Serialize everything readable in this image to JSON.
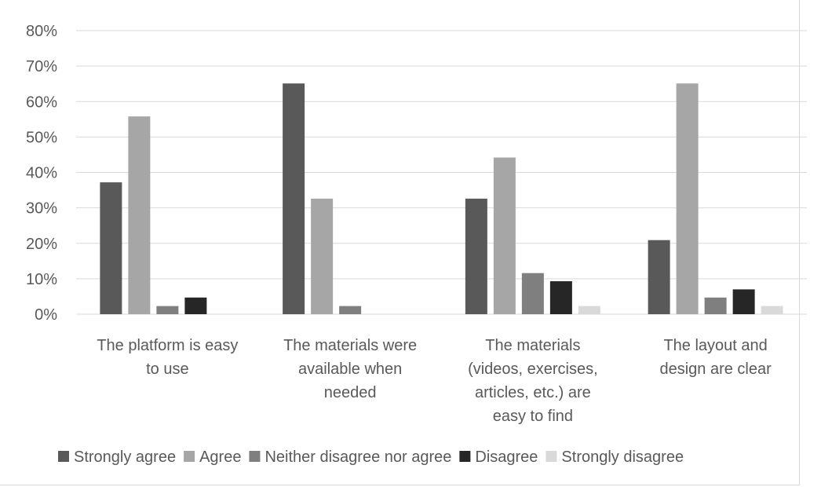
{
  "chart_data": {
    "type": "bar",
    "categories": [
      "The platform is easy to use",
      "The materials were available when needed",
      "The materials (videos, exercises, articles, etc.) are easy to find",
      "The layout and design are clear"
    ],
    "category_lines": [
      [
        "The platform is easy",
        "to use"
      ],
      [
        "The materials were",
        "available when",
        "needed"
      ],
      [
        "The materials",
        "(videos, exercises,",
        "articles, etc.) are",
        "easy to find"
      ],
      [
        "The layout and",
        "design are clear"
      ]
    ],
    "series": [
      {
        "name": "Strongly agree",
        "color": "#595959",
        "values": [
          37.2,
          65.1,
          32.6,
          20.9
        ]
      },
      {
        "name": "Agree",
        "color": "#a6a6a6",
        "values": [
          55.8,
          32.6,
          44.2,
          65.1
        ]
      },
      {
        "name": "Neither disagree nor agree",
        "color": "#7f7f7f",
        "values": [
          2.3,
          2.3,
          11.6,
          4.7
        ]
      },
      {
        "name": "Disagree",
        "color": "#262626",
        "values": [
          4.7,
          0,
          9.3,
          7.0
        ]
      },
      {
        "name": "Strongly disagree",
        "color": "#d9d9d9",
        "values": [
          0,
          0,
          2.3,
          2.3
        ]
      }
    ],
    "yticks": [
      "0%",
      "10%",
      "20%",
      "30%",
      "40%",
      "50%",
      "60%",
      "70%",
      "80%"
    ],
    "ylim": [
      0,
      80
    ],
    "grid": true,
    "legend_position": "bottom"
  }
}
